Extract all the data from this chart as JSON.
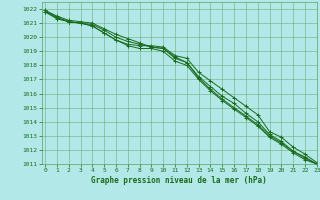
{
  "background_color": "#b3e8e8",
  "grid_color": "#5f9f5f",
  "line_color": "#1a6b1a",
  "marker_color": "#1a6b1a",
  "xlabel": "Graphe pression niveau de la mer (hPa)",
  "ylim": [
    1011,
    1022.5
  ],
  "xlim": [
    -0.3,
    23
  ],
  "yticks": [
    1011,
    1012,
    1013,
    1014,
    1015,
    1016,
    1017,
    1018,
    1019,
    1020,
    1021,
    1022
  ],
  "xticks": [
    0,
    1,
    2,
    3,
    4,
    5,
    6,
    7,
    8,
    9,
    10,
    11,
    12,
    13,
    14,
    15,
    16,
    17,
    18,
    19,
    20,
    21,
    22,
    23
  ],
  "series": [
    [
      1021.8,
      1021.3,
      1021.1,
      1021.0,
      1020.8,
      1020.3,
      1019.8,
      1019.5,
      1019.4,
      1019.4,
      1019.3,
      1018.7,
      1018.5,
      1017.5,
      1016.9,
      1016.3,
      1015.7,
      1015.1,
      1014.5,
      1013.3,
      1012.9,
      1012.2,
      1011.7,
      1011.1
    ],
    [
      1021.8,
      1021.4,
      1021.1,
      1021.0,
      1020.9,
      1020.5,
      1020.0,
      1019.7,
      1019.5,
      1019.3,
      1019.2,
      1018.5,
      1018.2,
      1017.2,
      1016.5,
      1015.8,
      1015.3,
      1014.6,
      1014.0,
      1013.1,
      1012.6,
      1011.9,
      1011.5,
      1011.0
    ],
    [
      1021.9,
      1021.5,
      1021.2,
      1021.1,
      1021.0,
      1020.6,
      1020.2,
      1019.9,
      1019.6,
      1019.3,
      1019.2,
      1018.6,
      1018.2,
      1017.1,
      1016.3,
      1015.6,
      1015.0,
      1014.4,
      1013.8,
      1013.0,
      1012.5,
      1011.9,
      1011.4,
      1011.0
    ],
    [
      1021.9,
      1021.4,
      1021.1,
      1021.0,
      1020.8,
      1020.3,
      1019.8,
      1019.4,
      1019.2,
      1019.2,
      1019.0,
      1018.3,
      1018.0,
      1017.0,
      1016.2,
      1015.5,
      1014.9,
      1014.3,
      1013.7,
      1012.9,
      1012.4,
      1011.8,
      1011.3,
      1011.0
    ]
  ],
  "figsize": [
    3.2,
    2.0
  ],
  "dpi": 100,
  "tick_fontsize": 4.5,
  "xlabel_fontsize": 5.5
}
